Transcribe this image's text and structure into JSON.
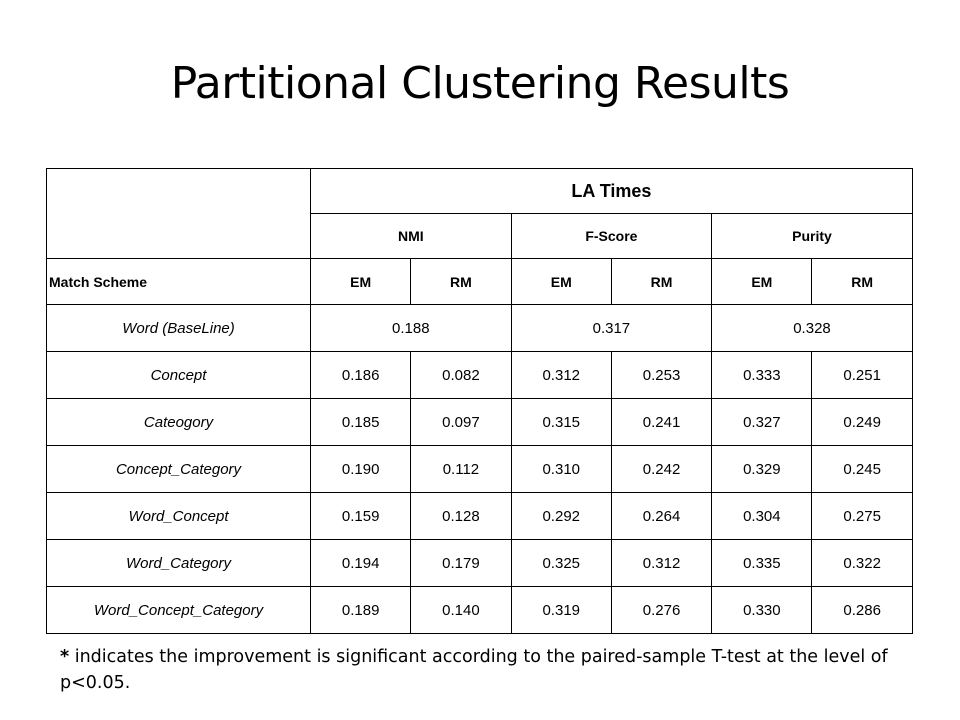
{
  "title": "Partitional Clustering Results",
  "table": {
    "group_header": "LA Times",
    "metrics": [
      "NMI",
      "F-Score",
      "Purity"
    ],
    "scheme_label": "Match Scheme",
    "subcolumns": [
      "EM",
      "RM",
      "EM",
      "RM",
      "EM",
      "RM"
    ],
    "baseline": {
      "label": "Word  (BaseLine)",
      "values": [
        "0.188",
        "0.317",
        "0.328"
      ]
    },
    "rows": [
      {
        "label": "Concept",
        "values": [
          "0.186",
          "0.082",
          "0.312",
          "0.253",
          "0.333",
          "0.251"
        ],
        "bold": [
          false,
          false,
          false,
          false,
          true,
          false
        ]
      },
      {
        "label": "Cateogory",
        "values": [
          "0.185",
          "0.097",
          "0.315",
          "0.241",
          "0.327",
          "0.249"
        ],
        "bold": [
          false,
          false,
          false,
          false,
          false,
          false
        ]
      },
      {
        "label": "Concept_Category",
        "values": [
          "0.190",
          "0.112",
          "0.310",
          "0.242",
          "0.329",
          "0.245"
        ],
        "bold": [
          true,
          false,
          false,
          false,
          true,
          false
        ]
      },
      {
        "label": "Word_Concept",
        "values": [
          "0.159",
          "0.128",
          "0.292",
          "0.264",
          "0.304",
          "0.275"
        ],
        "bold": [
          false,
          false,
          false,
          false,
          false,
          false
        ]
      },
      {
        "label": "Word_Category",
        "values": [
          "0.194",
          "0.179",
          "0.325",
          "0.312",
          "0.335",
          "0.322"
        ],
        "bold": [
          true,
          false,
          true,
          false,
          true,
          false
        ]
      },
      {
        "label": "Word_Concept_Category",
        "values": [
          "0.189",
          "0.140",
          "0.319",
          "0.276",
          "0.330",
          "0.286"
        ],
        "bold": [
          true,
          false,
          true,
          false,
          true,
          false
        ]
      }
    ]
  },
  "note": {
    "marker": "*",
    "text": " indicates the improvement is significant according to the paired-sample T-test at the level of p<0.05."
  }
}
